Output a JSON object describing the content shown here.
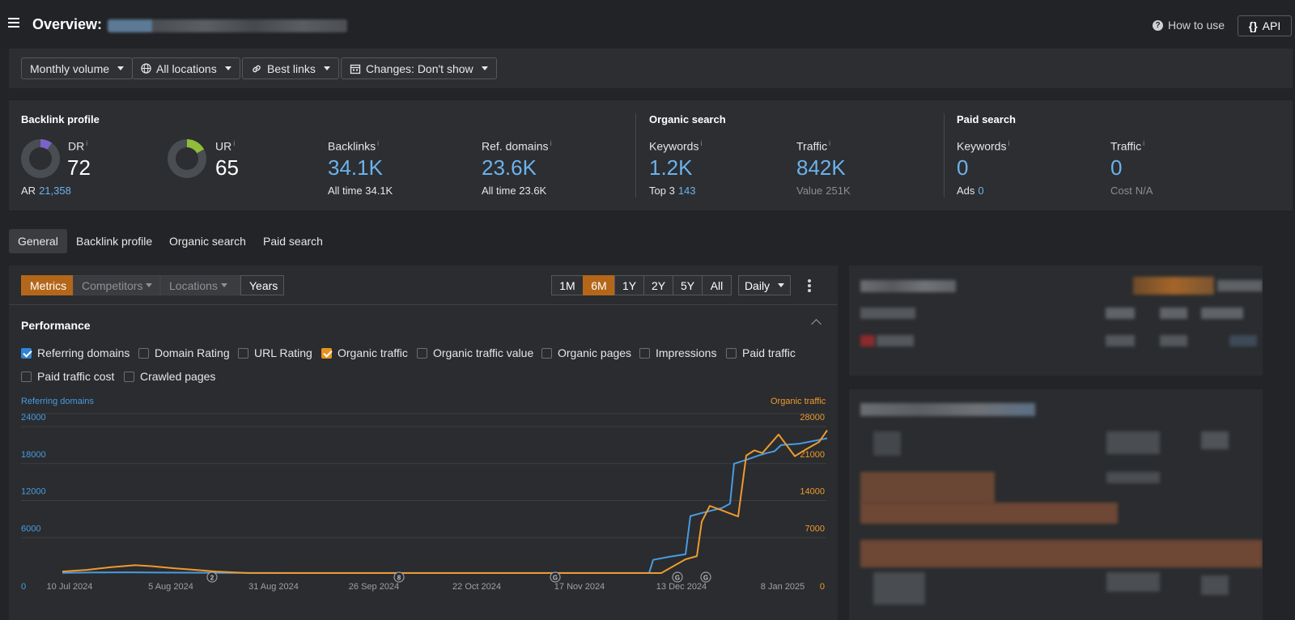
{
  "header": {
    "title": "Overview:",
    "how_to_use": "How to use",
    "api_label": "API"
  },
  "filters": {
    "volume": "Monthly volume",
    "locations": "All locations",
    "links": "Best links",
    "changes": "Changes: Don't show"
  },
  "backlink_profile": {
    "title": "Backlink profile",
    "dr_label": "DR",
    "dr_value": "72",
    "ar_label": "AR",
    "ar_value": "21,358",
    "ur_label": "UR",
    "ur_value": "65",
    "backlinks_label": "Backlinks",
    "backlinks_value": "34.1K",
    "backlinks_sub_label": "All time",
    "backlinks_sub_value": "34.1K",
    "refdomains_label": "Ref. domains",
    "refdomains_value": "23.6K",
    "refdomains_sub_label": "All time",
    "refdomains_sub_value": "23.6K"
  },
  "organic_search": {
    "title": "Organic search",
    "keywords_label": "Keywords",
    "keywords_value": "1.2K",
    "top3_label": "Top 3",
    "top3_value": "143",
    "traffic_label": "Traffic",
    "traffic_value": "842K",
    "value_label": "Value",
    "value_value": "251K"
  },
  "paid_search": {
    "title": "Paid search",
    "keywords_label": "Keywords",
    "keywords_value": "0",
    "ads_label": "Ads",
    "ads_value": "0",
    "traffic_label": "Traffic",
    "traffic_value": "0",
    "cost_label": "Cost",
    "cost_value": "N/A"
  },
  "tabs": [
    "General",
    "Backlink profile",
    "Organic search",
    "Paid search"
  ],
  "chart_controls": {
    "modes": [
      "Metrics",
      "Competitors",
      "Locations",
      "Years"
    ],
    "ranges": [
      "1M",
      "6M",
      "1Y",
      "2Y",
      "5Y",
      "All"
    ],
    "active_range": "6M",
    "interval": "Daily"
  },
  "performance": {
    "title": "Performance",
    "checkboxes": [
      {
        "label": "Referring domains",
        "checked": true
      },
      {
        "label": "Domain Rating",
        "checked": false
      },
      {
        "label": "URL Rating",
        "checked": false
      },
      {
        "label": "Organic traffic",
        "checked": true
      },
      {
        "label": "Organic traffic value",
        "checked": false
      },
      {
        "label": "Organic pages",
        "checked": false
      },
      {
        "label": "Impressions",
        "checked": false
      },
      {
        "label": "Paid traffic",
        "checked": false
      },
      {
        "label": "Paid traffic cost",
        "checked": false
      },
      {
        "label": "Crawled pages",
        "checked": false
      }
    ]
  },
  "colors": {
    "accent": "#b4671a",
    "referring_domains": "#4a9be0",
    "organic_traffic": "#ef9a2e",
    "link_blue": "#6cb2ec"
  },
  "chart_data": {
    "type": "line",
    "title": "Performance",
    "x_labels": [
      "10 Jul 2024",
      "5 Aug 2024",
      "31 Aug 2024",
      "26 Sep 2024",
      "22 Oct 2024",
      "17 Nov 2024",
      "13 Dec 2024",
      "8 Jan 2025"
    ],
    "ylabel_left": "Referring domains",
    "ylabel_right": "Organic traffic",
    "y_left_ticks": [
      "0",
      "6000",
      "12000",
      "18000",
      "24000"
    ],
    "y_right_ticks": [
      "0",
      "7000",
      "14000",
      "21000",
      "28000"
    ],
    "ylim_left": [
      0,
      24000
    ],
    "ylim_right": [
      0,
      28000
    ],
    "annotations": [
      "2",
      "8",
      "G",
      "G",
      "G"
    ],
    "series": [
      {
        "name": "Referring domains",
        "axis": "left",
        "color": "#4a9be0",
        "points": [
          [
            0,
            300
          ],
          [
            40,
            350
          ],
          [
            80,
            380
          ],
          [
            120,
            340
          ],
          [
            200,
            300
          ],
          [
            350,
            280
          ],
          [
            500,
            280
          ],
          [
            700,
            280
          ],
          [
            725,
            280
          ],
          [
            730,
            2400
          ],
          [
            750,
            2900
          ],
          [
            770,
            3300
          ],
          [
            776,
            9500
          ],
          [
            790,
            10000
          ],
          [
            815,
            10800
          ],
          [
            825,
            11500
          ],
          [
            830,
            18000
          ],
          [
            845,
            18600
          ],
          [
            860,
            19300
          ],
          [
            870,
            19700
          ],
          [
            880,
            20000
          ],
          [
            888,
            21000
          ],
          [
            910,
            21200
          ],
          [
            945,
            22100
          ]
        ]
      },
      {
        "name": "Organic traffic",
        "axis": "right",
        "color": "#ef9a2e",
        "points": [
          [
            0,
            600
          ],
          [
            30,
            900
          ],
          [
            60,
            1400
          ],
          [
            90,
            1800
          ],
          [
            110,
            1600
          ],
          [
            140,
            1200
          ],
          [
            190,
            600
          ],
          [
            230,
            300
          ],
          [
            400,
            300
          ],
          [
            700,
            300
          ],
          [
            740,
            300
          ],
          [
            770,
            2900
          ],
          [
            784,
            3500
          ],
          [
            790,
            10000
          ],
          [
            800,
            13000
          ],
          [
            835,
            11000
          ],
          [
            845,
            22500
          ],
          [
            855,
            23500
          ],
          [
            865,
            23000
          ],
          [
            885,
            26500
          ],
          [
            905,
            22400
          ],
          [
            920,
            23800
          ],
          [
            935,
            25100
          ],
          [
            945,
            27300
          ]
        ]
      }
    ]
  }
}
